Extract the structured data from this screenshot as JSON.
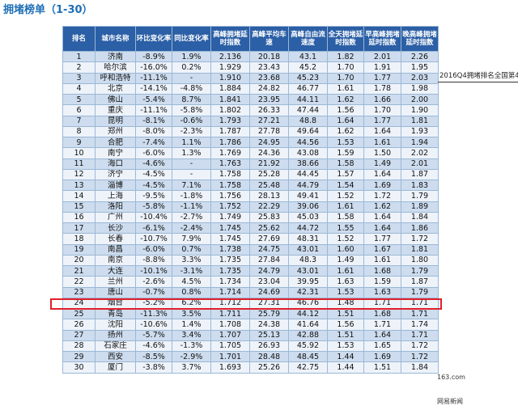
{
  "title": "拥堵榜单（1-30）",
  "annotation": "2016Q4拥堵排名全国第4",
  "watermark": [
    "163.com",
    "网易新闻"
  ],
  "colors": {
    "header_bg": "#2b5fa6",
    "row_a": "#cddcee",
    "row_b": "#eef3fa",
    "highlight": "#e0202a",
    "title": "#1f6fb5"
  },
  "table": {
    "headers": [
      "排名",
      "城市名称",
      "环比变化率",
      "同比变化率",
      "高峰拥堵延时指数",
      "高峰平均车速",
      "高峰自由流速度",
      "全天拥堵延时指数",
      "早高峰拥堵延时指数",
      "晚高峰拥堵延时指数"
    ],
    "rows": [
      [
        "1",
        "济南",
        "-8.9%",
        "1.9%",
        "2.136",
        "20.18",
        "43.1",
        "1.82",
        "2.01",
        "2.26"
      ],
      [
        "2",
        "哈尔滨",
        "-16.0%",
        "0.2%",
        "1.929",
        "23.43",
        "45.2",
        "1.70",
        "1.91",
        "1.95"
      ],
      [
        "3",
        "呼和浩特",
        "-11.1%",
        "-",
        "1.910",
        "23.68",
        "45.23",
        "1.70",
        "1.77",
        "2.03"
      ],
      [
        "4",
        "北京",
        "-14.1%",
        "-4.8%",
        "1.884",
        "24.82",
        "46.77",
        "1.61",
        "1.78",
        "1.98"
      ],
      [
        "5",
        "佛山",
        "-5.4%",
        "8.7%",
        "1.841",
        "23.95",
        "44.11",
        "1.62",
        "1.66",
        "2.00"
      ],
      [
        "6",
        "重庆",
        "-11.1%",
        "-5.8%",
        "1.802",
        "26.33",
        "47.44",
        "1.56",
        "1.70",
        "1.90"
      ],
      [
        "7",
        "昆明",
        "-8.1%",
        "-0.6%",
        "1.793",
        "27.21",
        "48.8",
        "1.64",
        "1.77",
        "1.81"
      ],
      [
        "8",
        "郑州",
        "-8.0%",
        "-2.3%",
        "1.787",
        "27.78",
        "49.64",
        "1.62",
        "1.64",
        "1.93"
      ],
      [
        "9",
        "合肥",
        "-7.4%",
        "1.1%",
        "1.786",
        "24.95",
        "44.56",
        "1.53",
        "1.61",
        "1.94"
      ],
      [
        "10",
        "南宁",
        "-6.0%",
        "1.3%",
        "1.769",
        "24.36",
        "43.08",
        "1.59",
        "1.50",
        "2.02"
      ],
      [
        "11",
        "海口",
        "-4.6%",
        "-",
        "1.763",
        "21.92",
        "38.66",
        "1.58",
        "1.49",
        "2.01"
      ],
      [
        "12",
        "济宁",
        "-4.5%",
        "-",
        "1.758",
        "25.28",
        "44.45",
        "1.57",
        "1.64",
        "1.87"
      ],
      [
        "13",
        "淄博",
        "-4.5%",
        "7.1%",
        "1.758",
        "25.48",
        "44.79",
        "1.54",
        "1.69",
        "1.83"
      ],
      [
        "14",
        "上海",
        "-9.5%",
        "-1.8%",
        "1.756",
        "28.13",
        "49.41",
        "1.52",
        "1.72",
        "1.79"
      ],
      [
        "15",
        "洛阳",
        "-5.8%",
        "-1.1%",
        "1.752",
        "22.29",
        "39.06",
        "1.61",
        "1.62",
        "1.89"
      ],
      [
        "16",
        "广州",
        "-10.4%",
        "-2.7%",
        "1.749",
        "25.83",
        "45.03",
        "1.58",
        "1.64",
        "1.84"
      ],
      [
        "17",
        "长沙",
        "-6.1%",
        "-2.4%",
        "1.745",
        "25.62",
        "44.72",
        "1.55",
        "1.64",
        "1.86"
      ],
      [
        "18",
        "长春",
        "-10.7%",
        "7.9%",
        "1.745",
        "27.69",
        "48.31",
        "1.52",
        "1.77",
        "1.72"
      ],
      [
        "19",
        "南昌",
        "-6.0%",
        "0.7%",
        "1.738",
        "24.75",
        "43.01",
        "1.60",
        "1.67",
        "1.81"
      ],
      [
        "20",
        "南京",
        "-8.8%",
        "3.3%",
        "1.735",
        "27.84",
        "48.3",
        "1.49",
        "1.61",
        "1.80"
      ],
      [
        "21",
        "大连",
        "-10.1%",
        "-3.1%",
        "1.735",
        "24.79",
        "43.01",
        "1.61",
        "1.68",
        "1.79"
      ],
      [
        "22",
        "兰州",
        "-2.6%",
        "4.5%",
        "1.734",
        "23.04",
        "39.95",
        "1.63",
        "1.59",
        "1.87"
      ],
      [
        "23",
        "唐山",
        "-0.7%",
        "0.8%",
        "1.714",
        "24.69",
        "42.31",
        "1.53",
        "1.63",
        "1.79"
      ],
      [
        "24",
        "烟台",
        "-5.2%",
        "6.2%",
        "1.712",
        "27.31",
        "46.76",
        "1.48",
        "1.71",
        "1.71"
      ],
      [
        "25",
        "青岛",
        "-11.3%",
        "3.5%",
        "1.711",
        "25.79",
        "44.12",
        "1.51",
        "1.68",
        "1.71"
      ],
      [
        "26",
        "沈阳",
        "-10.6%",
        "1.4%",
        "1.708",
        "24.38",
        "41.64",
        "1.56",
        "1.71",
        "1.74"
      ],
      [
        "27",
        "扬州",
        "-5.7%",
        "3.4%",
        "1.707",
        "25.13",
        "42.88",
        "1.51",
        "1.64",
        "1.71"
      ],
      [
        "28",
        "石家庄",
        "-4.6%",
        "-1.3%",
        "1.705",
        "26.93",
        "45.92",
        "1.53",
        "1.65",
        "1.72"
      ],
      [
        "29",
        "西安",
        "-8.5%",
        "-2.9%",
        "1.701",
        "28.48",
        "48.45",
        "1.44",
        "1.69",
        "1.72"
      ],
      [
        "30",
        "厦门",
        "-3.8%",
        "3.7%",
        "1.693",
        "25.26",
        "42.75",
        "1.44",
        "1.51",
        "1.84"
      ]
    ]
  }
}
